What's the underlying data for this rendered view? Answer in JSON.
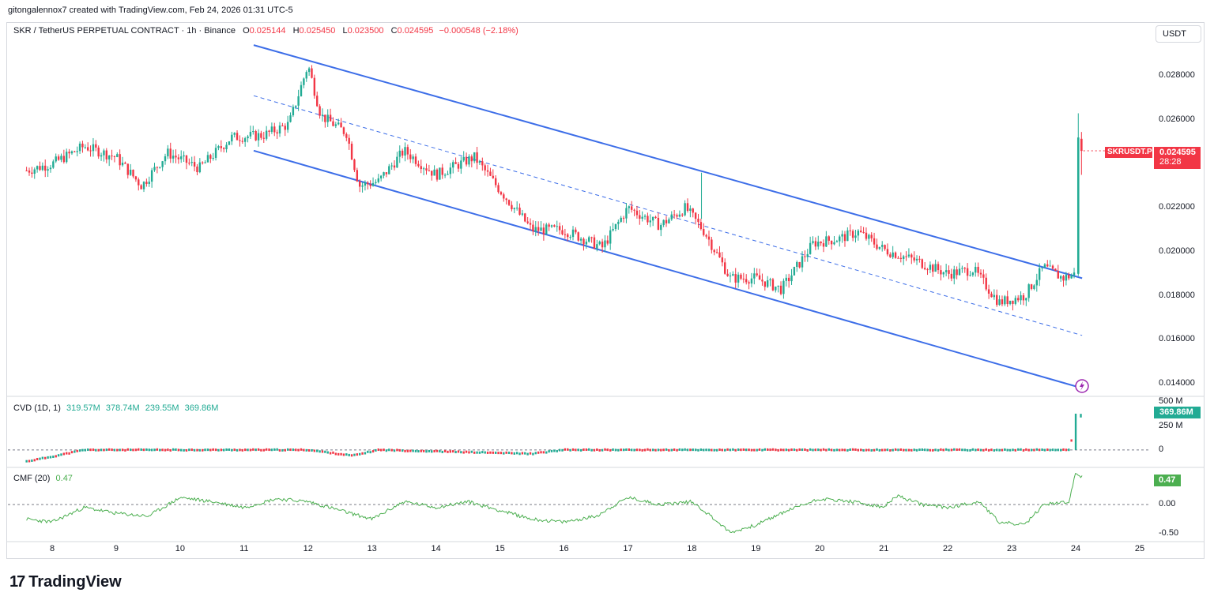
{
  "header": {
    "credit": "gitongalennox7 created with TradingView.com, Feb 24, 2026 01:31 UTC-5"
  },
  "legend": {
    "symbol": "SKR / TetherUS PERPETUAL CONTRACT · 1h · Binance",
    "o_label": "O",
    "o": "0.025144",
    "h_label": "H",
    "h": "0.025450",
    "l_label": "L",
    "l": "0.023500",
    "c_label": "C",
    "c": "0.024595",
    "change": "−0.000548 (−2.18%)"
  },
  "currency_button": "USDT",
  "price_tag": {
    "symbol": "SKRUSDT.P",
    "value": "0.024595",
    "countdown": "28:28",
    "color": "#f23645"
  },
  "cvd": {
    "label": "CVD (1D, 1)",
    "values": [
      "319.57M",
      "378.74M",
      "239.55M",
      "369.86M"
    ],
    "tag": "369.86M",
    "color": "#22ab94"
  },
  "cmf": {
    "label": "CMF (20)",
    "value": "0.47",
    "tag": "0.47",
    "color": "#4caf50"
  },
  "brand": {
    "name": "TradingView"
  },
  "colors": {
    "up": "#22ab94",
    "down": "#f23645",
    "channel": "#3d6ee8",
    "cmf_line": "#4caf50"
  },
  "chart_data": [
    {
      "type": "candlestick",
      "title": "SKR / TetherUS PERPETUAL CONTRACT · 1h · Binance",
      "x_ticks": [
        "8",
        "9",
        "10",
        "11",
        "12",
        "13",
        "14",
        "15",
        "16",
        "17",
        "18",
        "19",
        "20",
        "21",
        "22",
        "23",
        "24",
        "25"
      ],
      "y_ticks": [
        "0.028000",
        "0.026000",
        "0.022000",
        "0.020000",
        "0.018000",
        "0.016000",
        "0.014000"
      ],
      "ylim": [
        0.0135,
        0.0298
      ],
      "approx_close_path": [
        {
          "day": 7.6,
          "price": 0.0237
        },
        {
          "day": 8.0,
          "price": 0.024
        },
        {
          "day": 8.5,
          "price": 0.0248
        },
        {
          "day": 9.0,
          "price": 0.0243
        },
        {
          "day": 9.4,
          "price": 0.023
        },
        {
          "day": 9.8,
          "price": 0.0245
        },
        {
          "day": 10.3,
          "price": 0.0238
        },
        {
          "day": 10.8,
          "price": 0.0252
        },
        {
          "day": 11.3,
          "price": 0.0253
        },
        {
          "day": 11.7,
          "price": 0.0258
        },
        {
          "day": 12.0,
          "price": 0.0285
        },
        {
          "day": 12.2,
          "price": 0.0262
        },
        {
          "day": 12.6,
          "price": 0.0254
        },
        {
          "day": 12.8,
          "price": 0.023
        },
        {
          "day": 13.1,
          "price": 0.0232
        },
        {
          "day": 13.5,
          "price": 0.0246
        },
        {
          "day": 14.0,
          "price": 0.0235
        },
        {
          "day": 14.6,
          "price": 0.0243
        },
        {
          "day": 15.0,
          "price": 0.0228
        },
        {
          "day": 15.5,
          "price": 0.021
        },
        {
          "day": 16.0,
          "price": 0.021
        },
        {
          "day": 16.6,
          "price": 0.0202
        },
        {
          "day": 17.0,
          "price": 0.022
        },
        {
          "day": 17.5,
          "price": 0.0212
        },
        {
          "day": 17.9,
          "price": 0.022
        },
        {
          "day": 18.2,
          "price": 0.0209
        },
        {
          "day": 18.6,
          "price": 0.0188
        },
        {
          "day": 19.0,
          "price": 0.0188
        },
        {
          "day": 19.4,
          "price": 0.0183
        },
        {
          "day": 19.9,
          "price": 0.0204
        },
        {
          "day": 20.3,
          "price": 0.0206
        },
        {
          "day": 20.6,
          "price": 0.0209
        },
        {
          "day": 21.0,
          "price": 0.0201
        },
        {
          "day": 21.5,
          "price": 0.0196
        },
        {
          "day": 22.0,
          "price": 0.019
        },
        {
          "day": 22.4,
          "price": 0.0192
        },
        {
          "day": 22.8,
          "price": 0.0177
        },
        {
          "day": 23.2,
          "price": 0.018
        },
        {
          "day": 23.5,
          "price": 0.0193
        },
        {
          "day": 23.8,
          "price": 0.0188
        },
        {
          "day": 24.0,
          "price": 0.019
        },
        {
          "day": 24.05,
          "price": 0.0252
        },
        {
          "day": 24.1,
          "price": 0.0246
        }
      ],
      "channel": {
        "upper": [
          {
            "day": 11.15,
            "price": 0.0294
          },
          {
            "day": 24.1,
            "price": 0.0188
          }
        ],
        "middle": [
          {
            "day": 11.15,
            "price": 0.0271
          },
          {
            "day": 24.1,
            "price": 0.0162
          }
        ],
        "lower": [
          {
            "day": 11.15,
            "price": 0.0246
          },
          {
            "day": 24.1,
            "price": 0.0138
          }
        ]
      }
    },
    {
      "type": "area",
      "title": "CVD (1D, 1)",
      "y_ticks": [
        "500 M",
        "250 M",
        "0"
      ],
      "ylim": [
        -150,
        520
      ],
      "approx_path": [
        {
          "day": 7.6,
          "value": -120
        },
        {
          "day": 8.0,
          "value": -70
        },
        {
          "day": 8.5,
          "value": 0
        },
        {
          "day": 12.0,
          "value": 0
        },
        {
          "day": 12.7,
          "value": -60
        },
        {
          "day": 13.1,
          "value": 0
        },
        {
          "day": 15.5,
          "value": -40
        },
        {
          "day": 16.0,
          "value": 0
        },
        {
          "day": 23.9,
          "value": 0
        },
        {
          "day": 24.0,
          "value": 300
        },
        {
          "day": 24.05,
          "value": 380
        },
        {
          "day": 24.1,
          "value": 369.86
        }
      ]
    },
    {
      "type": "line",
      "title": "CMF (20)",
      "y_ticks": [
        "0.00",
        "-0.50"
      ],
      "ylim": [
        -0.62,
        0.58
      ],
      "approx_path": [
        {
          "day": 7.6,
          "value": -0.25
        },
        {
          "day": 8.0,
          "value": -0.3
        },
        {
          "day": 8.5,
          "value": -0.05
        },
        {
          "day": 9.0,
          "value": -0.15
        },
        {
          "day": 9.5,
          "value": -0.2
        },
        {
          "day": 10.0,
          "value": 0.12
        },
        {
          "day": 10.5,
          "value": 0.05
        },
        {
          "day": 11.0,
          "value": -0.05
        },
        {
          "day": 11.5,
          "value": 0.1
        },
        {
          "day": 12.0,
          "value": 0.05
        },
        {
          "day": 12.5,
          "value": -0.1
        },
        {
          "day": 13.0,
          "value": -0.25
        },
        {
          "day": 13.5,
          "value": 0.05
        },
        {
          "day": 14.0,
          "value": -0.05
        },
        {
          "day": 14.5,
          "value": 0.05
        },
        {
          "day": 15.0,
          "value": -0.1
        },
        {
          "day": 15.5,
          "value": -0.25
        },
        {
          "day": 16.0,
          "value": -0.3
        },
        {
          "day": 16.5,
          "value": -0.2
        },
        {
          "day": 17.0,
          "value": 0.12
        },
        {
          "day": 17.5,
          "value": 0.0
        },
        {
          "day": 18.0,
          "value": 0.05
        },
        {
          "day": 18.3,
          "value": -0.2
        },
        {
          "day": 18.6,
          "value": -0.48
        },
        {
          "day": 19.0,
          "value": -0.35
        },
        {
          "day": 19.5,
          "value": -0.1
        },
        {
          "day": 20.0,
          "value": 0.1
        },
        {
          "day": 20.5,
          "value": 0.05
        },
        {
          "day": 21.0,
          "value": -0.05
        },
        {
          "day": 21.2,
          "value": 0.15
        },
        {
          "day": 21.6,
          "value": 0.0
        },
        {
          "day": 22.0,
          "value": -0.05
        },
        {
          "day": 22.5,
          "value": 0.05
        },
        {
          "day": 22.8,
          "value": -0.3
        },
        {
          "day": 23.2,
          "value": -0.35
        },
        {
          "day": 23.5,
          "value": 0.0
        },
        {
          "day": 23.9,
          "value": 0.05
        },
        {
          "day": 24.0,
          "value": 0.55
        },
        {
          "day": 24.1,
          "value": 0.47
        }
      ]
    }
  ]
}
